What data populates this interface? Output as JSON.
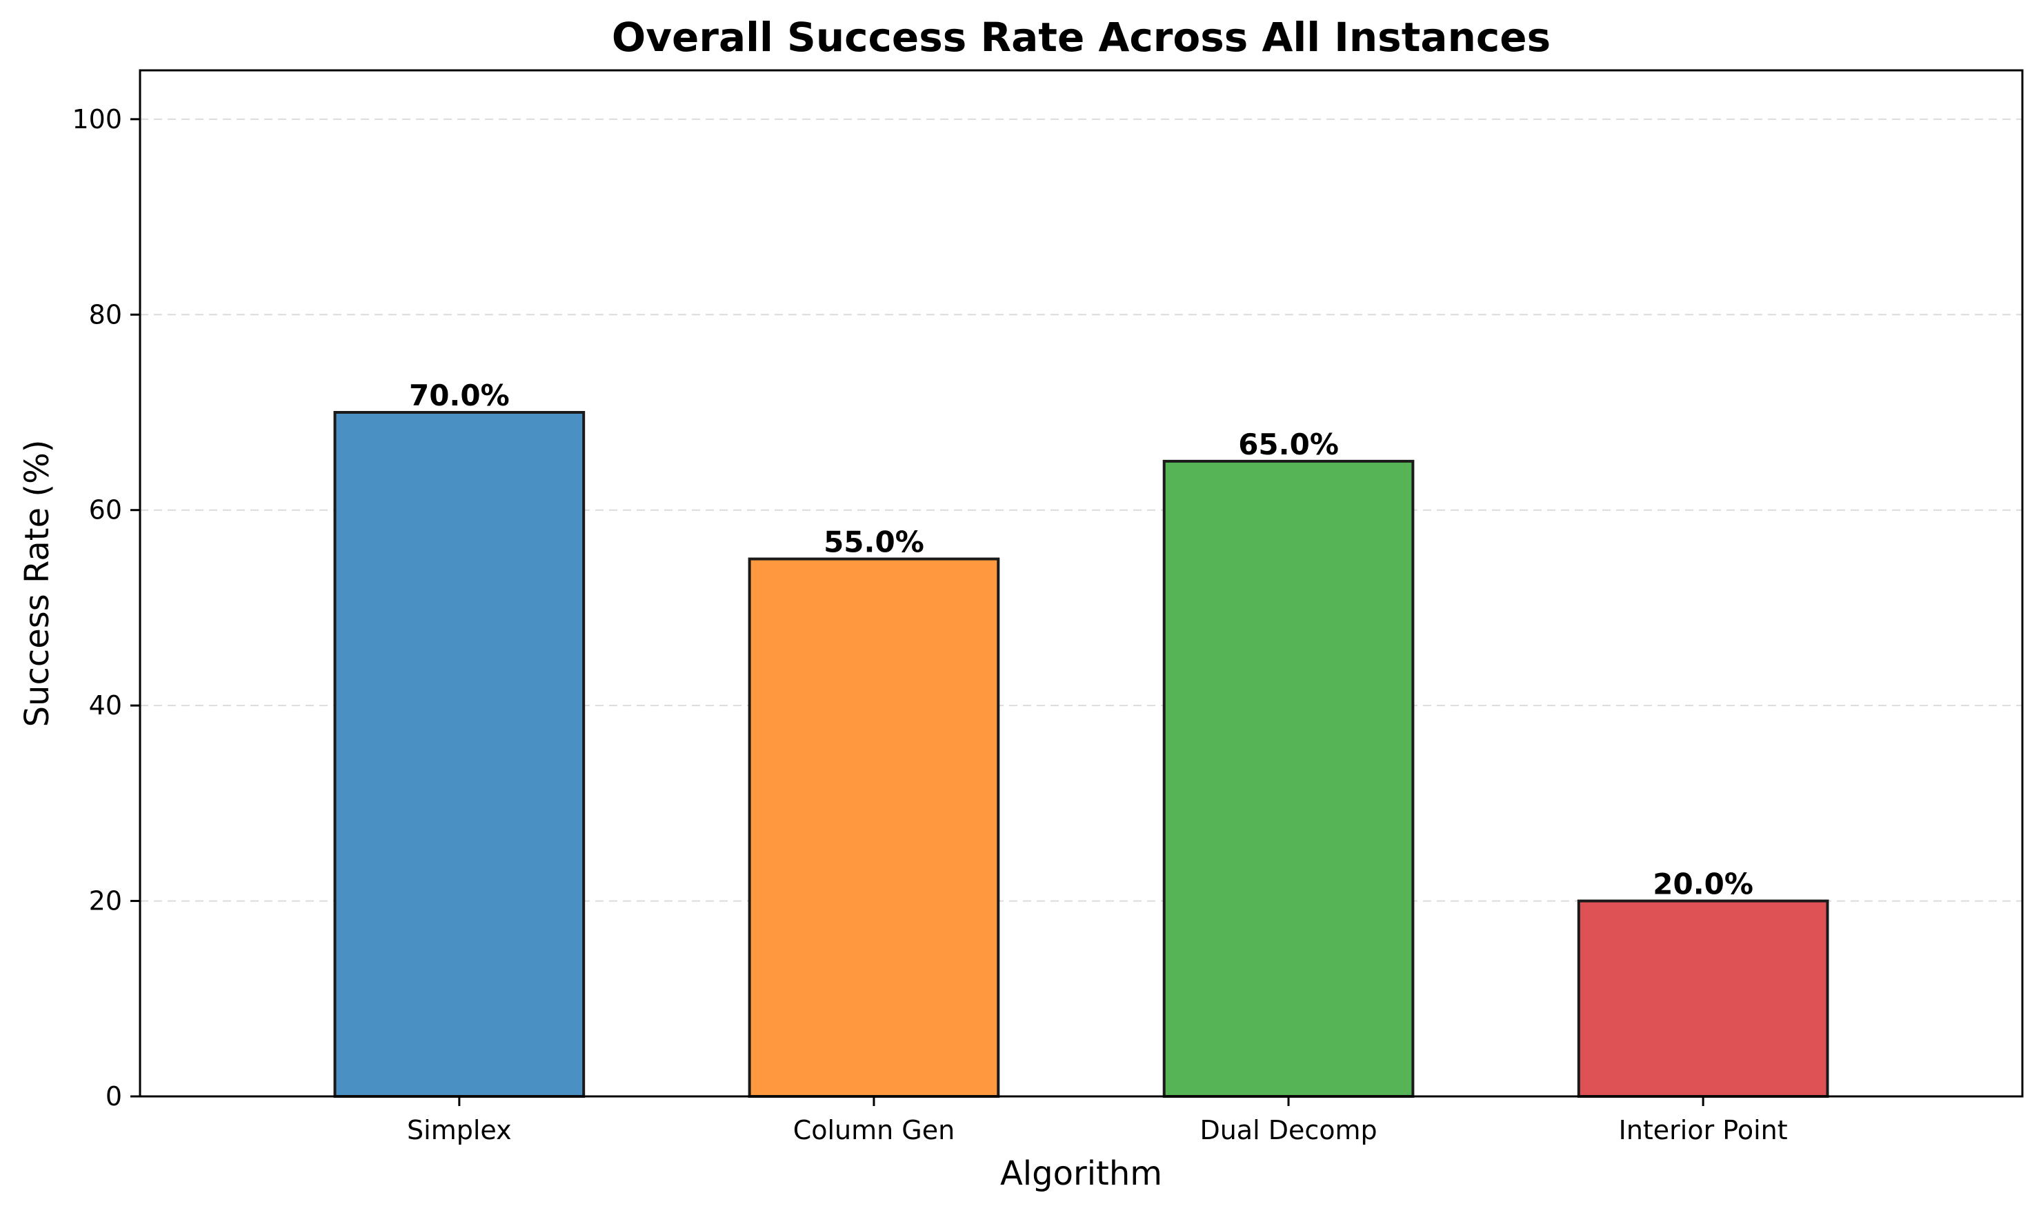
{
  "chart_data": {
    "type": "bar",
    "title": "Overall Success Rate Across All Instances",
    "xlabel": "Algorithm",
    "ylabel": "Success Rate (%)",
    "categories": [
      "Simplex",
      "Column Gen",
      "Dual Decomp",
      "Interior Point"
    ],
    "values": [
      70.0,
      55.0,
      65.0,
      20.0
    ],
    "value_labels": [
      "70.0%",
      "55.0%",
      "65.0%",
      "20.0%"
    ],
    "colors": [
      "#4a90c2",
      "#ff9940",
      "#57b456",
      "#de5255"
    ],
    "ylim": [
      0,
      105
    ],
    "yticks": [
      0,
      20,
      40,
      60,
      80,
      100
    ],
    "grid": "y-dashed",
    "legend": "none"
  }
}
